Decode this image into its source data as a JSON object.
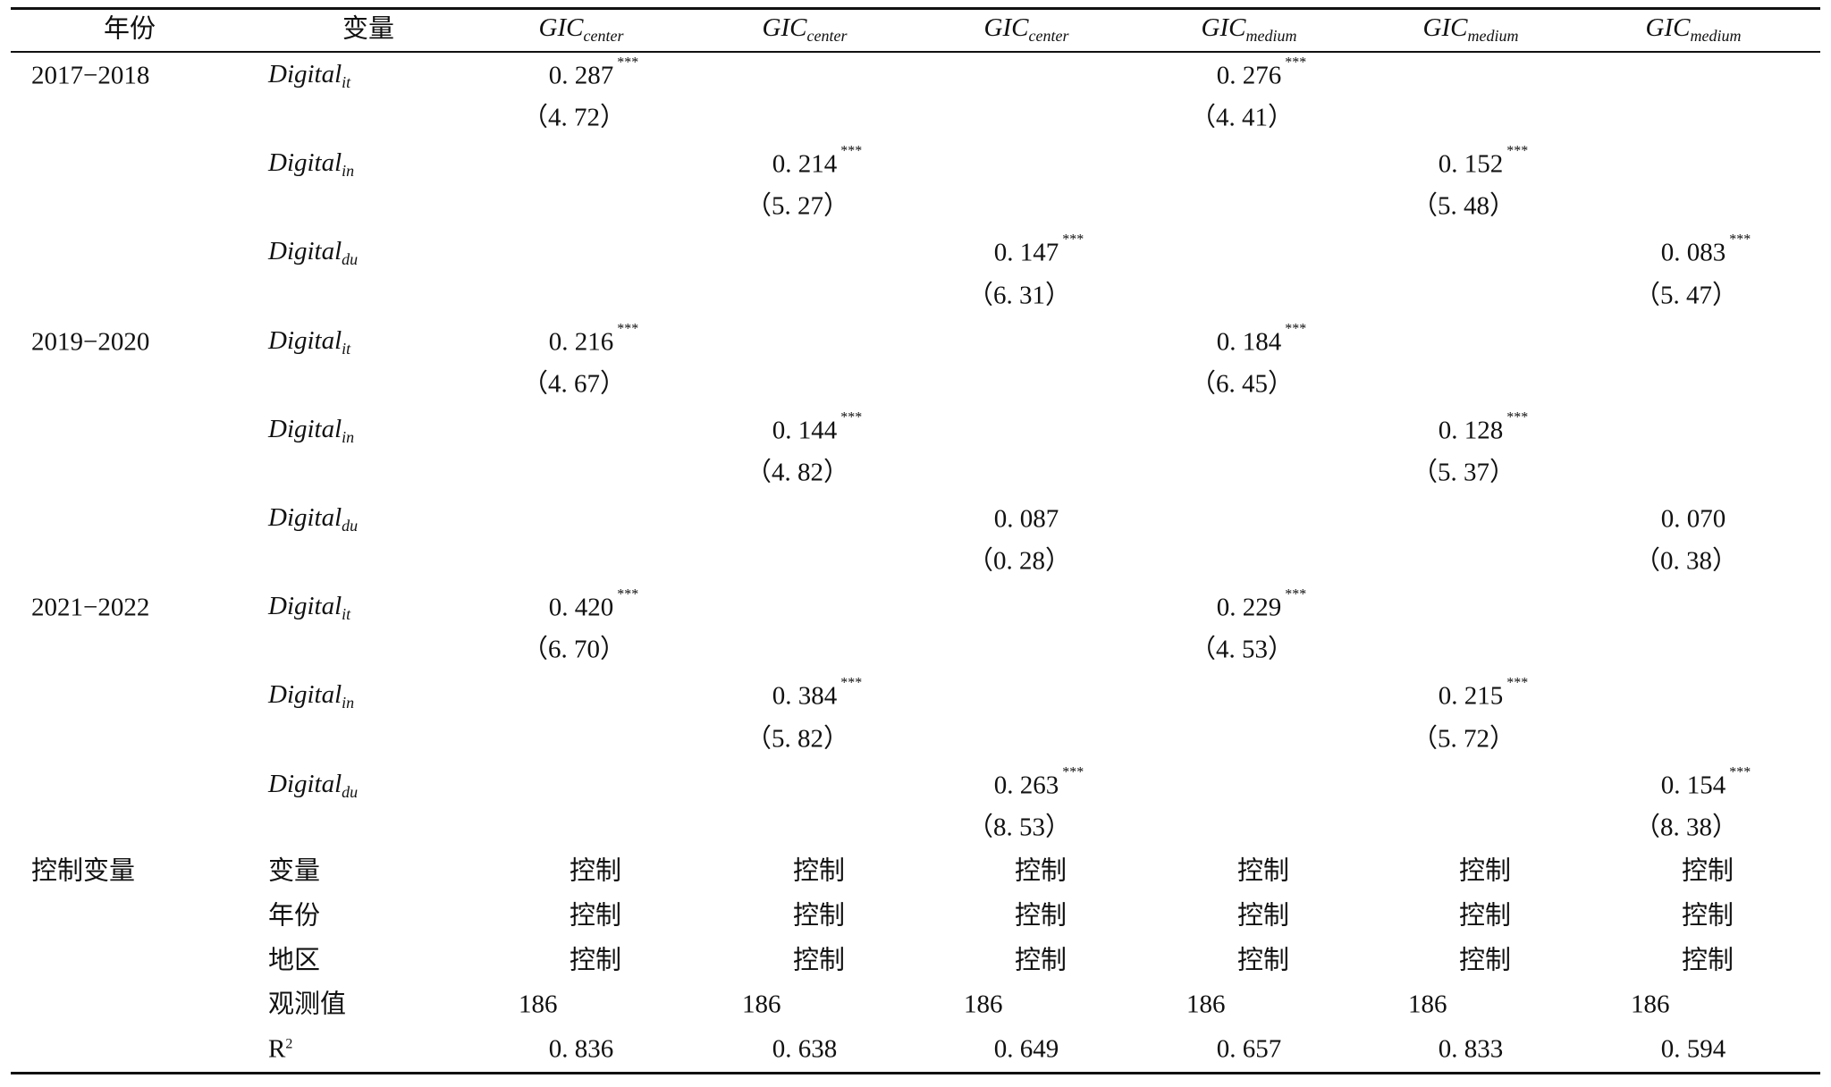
{
  "columns": [
    {
      "label": "年份"
    },
    {
      "label": "变量"
    },
    {
      "base": "GIC",
      "sub": "center"
    },
    {
      "base": "GIC",
      "sub": "center"
    },
    {
      "base": "GIC",
      "sub": "center"
    },
    {
      "base": "GIC",
      "sub": "medium"
    },
    {
      "base": "GIC",
      "sub": "medium"
    },
    {
      "base": "GIC",
      "sub": "medium"
    }
  ],
  "blocks": [
    {
      "year": "2017−2018",
      "rows": [
        {
          "var": {
            "base": "Digital",
            "sub": "it"
          },
          "cells": [
            {
              "value": "0. 287",
              "stars": "***",
              "t": "（4. 72）"
            },
            null,
            null,
            {
              "value": "0. 276",
              "stars": "***",
              "t": "（4. 41）"
            },
            null,
            null
          ]
        },
        {
          "var": {
            "base": "Digital",
            "sub": "in"
          },
          "cells": [
            null,
            {
              "value": "0. 214",
              "stars": "***",
              "t": "（5. 27）"
            },
            null,
            null,
            {
              "value": "0. 152",
              "stars": "***",
              "t": "（5. 48）"
            },
            null
          ]
        },
        {
          "var": {
            "base": "Digital",
            "sub": "du"
          },
          "cells": [
            null,
            null,
            {
              "value": "0. 147",
              "stars": "***",
              "t": "（6. 31）"
            },
            null,
            null,
            {
              "value": "0. 083",
              "stars": "***",
              "t": "（5. 47）"
            }
          ]
        }
      ]
    },
    {
      "year": "2019−2020",
      "rows": [
        {
          "var": {
            "base": "Digital",
            "sub": "it"
          },
          "cells": [
            {
              "value": "0. 216",
              "stars": "***",
              "t": "（4. 67）"
            },
            null,
            null,
            {
              "value": "0. 184",
              "stars": "***",
              "t": "（6. 45）"
            },
            null,
            null
          ]
        },
        {
          "var": {
            "base": "Digital",
            "sub": "in"
          },
          "cells": [
            null,
            {
              "value": "0. 144",
              "stars": "***",
              "t": "（4. 82）"
            },
            null,
            null,
            {
              "value": "0. 128",
              "stars": "***",
              "t": "（5. 37）"
            },
            null
          ]
        },
        {
          "var": {
            "base": "Digital",
            "sub": "du"
          },
          "cells": [
            null,
            null,
            {
              "value": "0. 087",
              "t": "（0. 28）"
            },
            null,
            null,
            {
              "value": "0. 070",
              "t": "（0. 38）"
            }
          ]
        }
      ]
    },
    {
      "year": "2021−2022",
      "rows": [
        {
          "var": {
            "base": "Digital",
            "sub": "it"
          },
          "cells": [
            {
              "value": "0. 420",
              "stars": "***",
              "t": "（6. 70）"
            },
            null,
            null,
            {
              "value": "0. 229",
              "stars": "***",
              "t": "（4. 53）"
            },
            null,
            null
          ]
        },
        {
          "var": {
            "base": "Digital",
            "sub": "in"
          },
          "cells": [
            null,
            {
              "value": "0. 384",
              "stars": "***",
              "t": "（5. 82）"
            },
            null,
            null,
            {
              "value": "0. 215",
              "stars": "***",
              "t": "（5. 72）"
            },
            null
          ]
        },
        {
          "var": {
            "base": "Digital",
            "sub": "du"
          },
          "cells": [
            null,
            null,
            {
              "value": "0. 263",
              "stars": "***",
              "t": "（8. 53）"
            },
            null,
            null,
            {
              "value": "0. 154",
              "stars": "***",
              "t": "（8. 38）"
            }
          ]
        }
      ]
    }
  ],
  "controls": {
    "label": "控制变量",
    "rows": [
      {
        "name": "变量",
        "cells": [
          "控制",
          "控制",
          "控制",
          "控制",
          "控制",
          "控制"
        ]
      },
      {
        "name": "年份",
        "cells": [
          "控制",
          "控制",
          "控制",
          "控制",
          "控制",
          "控制"
        ]
      },
      {
        "name": "地区",
        "cells": [
          "控制",
          "控制",
          "控制",
          "控制",
          "控制",
          "控制"
        ]
      },
      {
        "name": "观测值",
        "cells": [
          "186",
          "186",
          "186",
          "186",
          "186",
          "186"
        ]
      }
    ]
  },
  "r2": {
    "name": "R",
    "sup": "2",
    "cells": [
      "0. 836",
      "0. 638",
      "0. 649",
      "0. 657",
      "0. 833",
      "0. 594"
    ]
  }
}
